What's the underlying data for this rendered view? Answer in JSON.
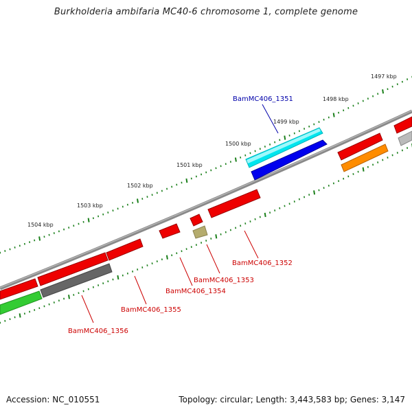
{
  "header": {
    "title": "Burkholderia ambifaria MC40-6 chromosome 1, complete genome"
  },
  "footer": {
    "accession": "Accession: NC_010551",
    "summary": "Topology: circular; Length: 3,443,583 bp; Genes: 3,147"
  },
  "scale": {
    "ticks": [
      {
        "label": "1497 kbp"
      },
      {
        "label": "1498 kbp"
      },
      {
        "label": "1499 kbp"
      },
      {
        "label": "1500 kbp"
      },
      {
        "label": "1501 kbp"
      },
      {
        "label": "1502 kbp"
      },
      {
        "label": "1503 kbp"
      },
      {
        "label": "1504 kbp"
      }
    ]
  },
  "gene_labels": {
    "plus": [
      {
        "text": "BamMC406_1351",
        "color": "#0000aa"
      }
    ],
    "minus": [
      {
        "text": "BamMC406_1352",
        "color": "#cc0000"
      },
      {
        "text": "BamMC406_1353",
        "color": "#cc0000"
      },
      {
        "text": "BamMC406_1354",
        "color": "#cc0000"
      },
      {
        "text": "BamMC406_1355",
        "color": "#cc0000"
      },
      {
        "text": "BamMC406_1356",
        "color": "#cc0000"
      }
    ]
  },
  "colors": {
    "backbone": "#8a8a8a",
    "tick": "#1a7f1a",
    "red_gene": "#ee0000",
    "cyan_gene": "#00e5ee",
    "blue_gene": "#0000ee",
    "orange_gene": "#ff8c00",
    "grey_gene": "#666666",
    "light_grey_gene": "#bbbbbb",
    "green_gene": "#33cc33",
    "olive_gene": "#b5ac6e"
  }
}
